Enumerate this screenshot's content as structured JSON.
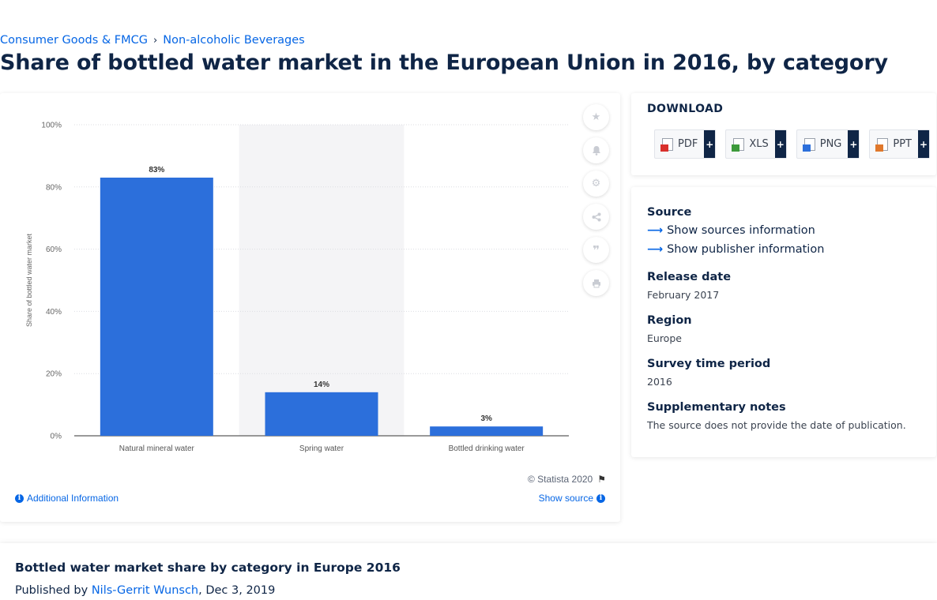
{
  "breadcrumb": {
    "items": [
      "Consumer Goods & FMCG",
      "Non-alcoholic Beverages"
    ],
    "separator": "›"
  },
  "page_title": "Share of bottled water market in the European Union in 2016, by category",
  "chart_data": {
    "type": "bar",
    "categories": [
      "Natural mineral water",
      "Spring water",
      "Bottled drinking water"
    ],
    "values": [
      83,
      14,
      3
    ],
    "value_labels": [
      "83%",
      "14%",
      "3%"
    ],
    "ylabel": "Share of bottled water market",
    "xlabel": "",
    "ylim": [
      0,
      100
    ],
    "yticks": [
      "0%",
      "20%",
      "40%",
      "60%",
      "80%",
      "100%"
    ],
    "grid": true,
    "bar_color": "#2c6fdb",
    "highlighted_category": "Spring water"
  },
  "toolbar": {
    "icons": [
      "star-icon",
      "bell-icon",
      "gear-icon",
      "share-icon",
      "quote-icon",
      "print-icon"
    ]
  },
  "chart_footer": {
    "copyright": "© Statista 2020",
    "additional_info": "Additional Information",
    "show_source": "Show source"
  },
  "download": {
    "title": "DOWNLOAD",
    "formats": [
      {
        "label": "PDF",
        "color": "#d9302c"
      },
      {
        "label": "XLS",
        "color": "#3d9a3b"
      },
      {
        "label": "PNG",
        "color": "#2c6fdb"
      },
      {
        "label": "PPT",
        "color": "#e0782c"
      }
    ],
    "plus": "+"
  },
  "info": {
    "source_title": "Source",
    "show_sources": "Show sources information",
    "show_publisher": "Show publisher information",
    "release_title": "Release date",
    "release_value": "February 2017",
    "region_title": "Region",
    "region_value": "Europe",
    "survey_title": "Survey time period",
    "survey_value": "2016",
    "notes_title": "Supplementary notes",
    "notes_value": "The source does not provide the date of publication."
  },
  "bottom": {
    "title": "Bottled water market share by category in Europe 2016",
    "published_prefix": "Published by",
    "author": "Nils-Gerrit Wunsch",
    "date": ", Dec 3, 2019"
  }
}
